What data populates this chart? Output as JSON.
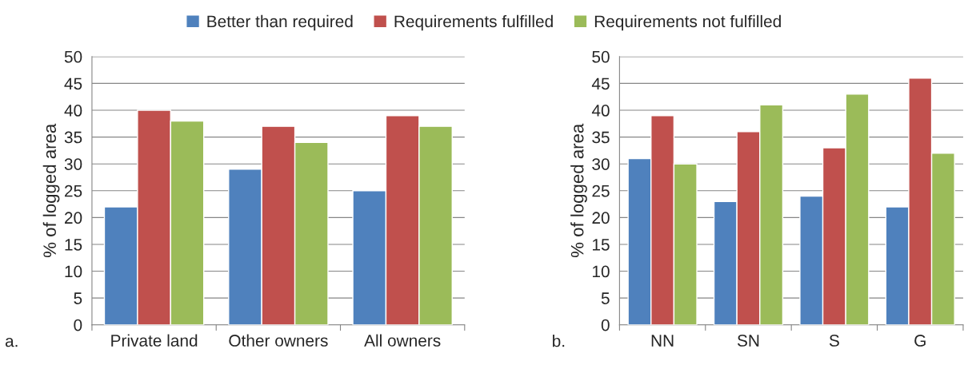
{
  "chart_data": [
    {
      "type": "bar",
      "ylabel": "% of logged area",
      "categories": [
        "Private land",
        "Other owners",
        "All owners"
      ],
      "series": [
        {
          "name": "Better than required",
          "color": "#4f81bd",
          "values": [
            22,
            29,
            25
          ]
        },
        {
          "name": "Requirements fulfilled",
          "color": "#c0504d",
          "values": [
            40,
            37,
            39
          ]
        },
        {
          "name": "Requirements not fulfilled",
          "color": "#9bbb59",
          "values": [
            38,
            34,
            37
          ]
        }
      ],
      "ylim": [
        0,
        50
      ],
      "yticks": [
        0,
        5,
        10,
        15,
        20,
        25,
        30,
        35,
        40,
        45,
        50
      ],
      "grid": "y",
      "legend": "top",
      "annotations": [
        "a."
      ]
    },
    {
      "type": "bar",
      "ylabel": "% of logged area",
      "categories": [
        "NN",
        "SN",
        "S",
        "G"
      ],
      "series": [
        {
          "color": "#4f81bd",
          "values": [
            31,
            23,
            24,
            22
          ]
        },
        {
          "color": "#c0504d",
          "values": [
            39,
            36,
            33,
            46
          ]
        },
        {
          "color": "#9bbb59",
          "values": [
            30,
            41,
            43,
            32
          ]
        }
      ],
      "ylim": [
        0,
        50
      ],
      "yticks": [
        0,
        5,
        10,
        15,
        20,
        25,
        30,
        35,
        40,
        45,
        50
      ],
      "grid": "y",
      "annotations": [
        "b."
      ]
    }
  ]
}
